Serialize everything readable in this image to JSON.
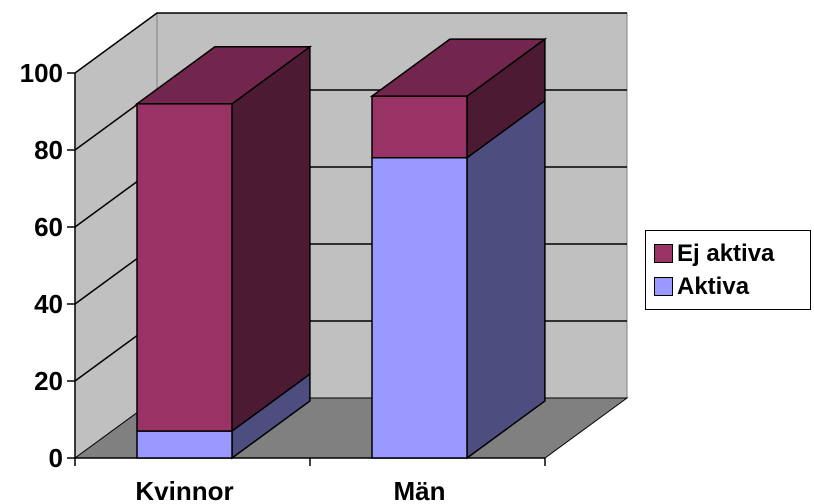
{
  "chart_data": {
    "type": "bar",
    "stacked": true,
    "three_d": true,
    "categories": [
      "Kvinnor",
      "Män"
    ],
    "series": [
      {
        "name": "Aktiva",
        "values": [
          7,
          78
        ],
        "color": "#9999ff"
      },
      {
        "name": "Ej aktiva",
        "values": [
          85,
          16
        ],
        "color": "#993366"
      }
    ],
    "yticks": [
      0,
      20,
      40,
      60,
      80,
      100
    ],
    "ylim": [
      0,
      100
    ],
    "grid": true,
    "legend_position": "right",
    "title": "",
    "xlabel": "",
    "ylabel": ""
  },
  "colors": {
    "wall": "#c0c0c0",
    "floor": "#808080"
  }
}
